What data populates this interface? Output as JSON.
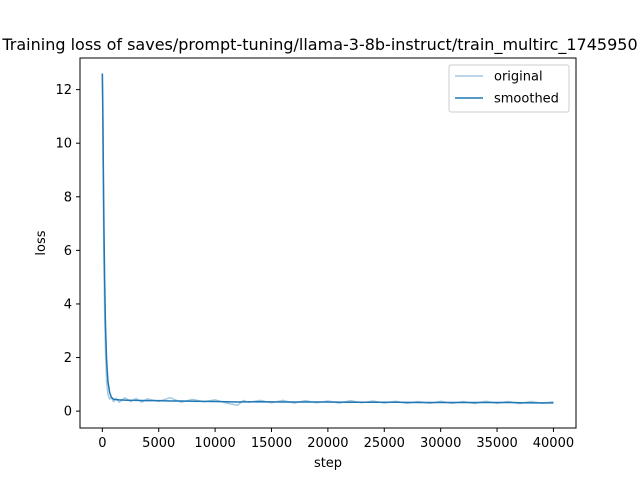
{
  "chart_data": {
    "type": "line",
    "title": "Training loss of saves/prompt-tuning/llama-3-8b-instruct/train_multirc_1745950",
    "xlabel": "step",
    "ylabel": "loss",
    "xlim": [
      -1980,
      42000
    ],
    "ylim": [
      -0.63,
      13.18
    ],
    "x_ticks": [
      0,
      5000,
      10000,
      15000,
      20000,
      25000,
      30000,
      35000,
      40000
    ],
    "y_ticks": [
      0,
      2,
      4,
      6,
      8,
      10,
      12
    ],
    "grid": false,
    "legend_position": "top-right",
    "series": [
      {
        "name": "original",
        "color": "#1f77b4",
        "alpha": 0.4,
        "points": [
          [
            0,
            12.6
          ],
          [
            40,
            11.0
          ],
          [
            80,
            8.5
          ],
          [
            130,
            6.0
          ],
          [
            200,
            3.8
          ],
          [
            280,
            2.2
          ],
          [
            380,
            1.1
          ],
          [
            500,
            0.62
          ],
          [
            650,
            0.45
          ],
          [
            800,
            0.5
          ],
          [
            1000,
            0.35
          ],
          [
            1200,
            0.48
          ],
          [
            1500,
            0.33
          ],
          [
            2000,
            0.5
          ],
          [
            2500,
            0.36
          ],
          [
            3000,
            0.47
          ],
          [
            3500,
            0.33
          ],
          [
            4000,
            0.46
          ],
          [
            5000,
            0.36
          ],
          [
            6000,
            0.5
          ],
          [
            7000,
            0.33
          ],
          [
            8000,
            0.44
          ],
          [
            9000,
            0.35
          ],
          [
            10000,
            0.42
          ],
          [
            11000,
            0.3
          ],
          [
            12000,
            0.22
          ],
          [
            12500,
            0.4
          ],
          [
            13000,
            0.33
          ],
          [
            14000,
            0.4
          ],
          [
            15000,
            0.31
          ],
          [
            16000,
            0.4
          ],
          [
            17000,
            0.3
          ],
          [
            18000,
            0.39
          ],
          [
            19000,
            0.31
          ],
          [
            20000,
            0.38
          ],
          [
            21000,
            0.3
          ],
          [
            22000,
            0.39
          ],
          [
            23000,
            0.31
          ],
          [
            24000,
            0.38
          ],
          [
            25000,
            0.3
          ],
          [
            26000,
            0.37
          ],
          [
            27000,
            0.29
          ],
          [
            28000,
            0.36
          ],
          [
            29000,
            0.29
          ],
          [
            30000,
            0.37
          ],
          [
            31000,
            0.29
          ],
          [
            32000,
            0.36
          ],
          [
            33000,
            0.28
          ],
          [
            34000,
            0.37
          ],
          [
            35000,
            0.29
          ],
          [
            36000,
            0.36
          ],
          [
            37000,
            0.28
          ],
          [
            38000,
            0.36
          ],
          [
            39000,
            0.29
          ],
          [
            40000,
            0.35
          ]
        ]
      },
      {
        "name": "smoothed",
        "color": "#1f77b4",
        "alpha": 1.0,
        "points": [
          [
            0,
            12.6
          ],
          [
            40,
            11.4
          ],
          [
            80,
            9.5
          ],
          [
            130,
            7.3
          ],
          [
            200,
            5.0
          ],
          [
            280,
            3.2
          ],
          [
            380,
            1.9
          ],
          [
            500,
            1.1
          ],
          [
            650,
            0.7
          ],
          [
            800,
            0.52
          ],
          [
            1000,
            0.44
          ],
          [
            1500,
            0.42
          ],
          [
            2000,
            0.41
          ],
          [
            3000,
            0.4
          ],
          [
            4000,
            0.39
          ],
          [
            5000,
            0.39
          ],
          [
            6000,
            0.38
          ],
          [
            7000,
            0.38
          ],
          [
            8000,
            0.37
          ],
          [
            10000,
            0.36
          ],
          [
            12000,
            0.34
          ],
          [
            14000,
            0.35
          ],
          [
            16000,
            0.34
          ],
          [
            18000,
            0.34
          ],
          [
            20000,
            0.34
          ],
          [
            22000,
            0.33
          ],
          [
            24000,
            0.33
          ],
          [
            26000,
            0.33
          ],
          [
            28000,
            0.32
          ],
          [
            30000,
            0.32
          ],
          [
            32000,
            0.32
          ],
          [
            34000,
            0.32
          ],
          [
            36000,
            0.32
          ],
          [
            38000,
            0.31
          ],
          [
            40000,
            0.31
          ]
        ]
      }
    ]
  }
}
